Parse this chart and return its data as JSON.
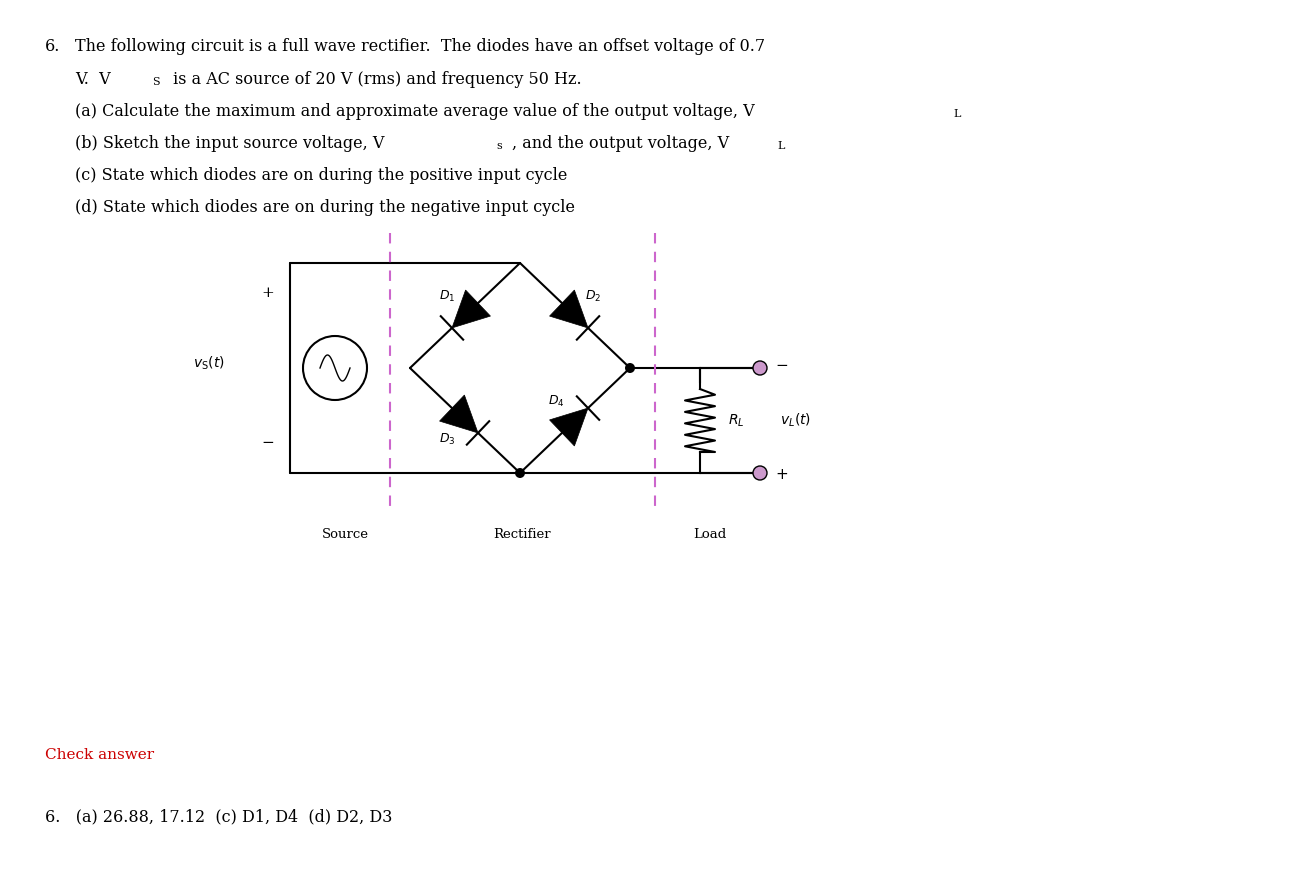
{
  "title_number": "6.",
  "problem_text_line1": "The following circuit is a full wave rectifier.  The diodes have an offset voltage of 0.7",
  "problem_text_line2": "V.  Vₛ is a AC source of 20 V (rms) and frequency 50 Hz.",
  "problem_text_line3": "(a) Calculate the maximum and approximate average value of the output voltage, Vₗ",
  "problem_text_line4": "(b) Sketch the input source voltage, Vₛ, and the output voltage, Vₗ",
  "problem_text_line5": "(c) State which diodes are on during the positive input cycle",
  "problem_text_line6": "(d) State which diodes are on during the negative input cycle",
  "check_answer_text": "Check answer",
  "check_answer_color": "#cc0000",
  "answer_text": "6.   (a) 26.88, 17.12  (c) D1, D4  (d) D2, D3",
  "bg_color": "#ffffff",
  "text_color": "#000000",
  "dashed_line_color": "#cc66cc",
  "circuit_line_color": "#000000",
  "node_dot_color": "#cc99cc",
  "resistor_color": "#000000"
}
